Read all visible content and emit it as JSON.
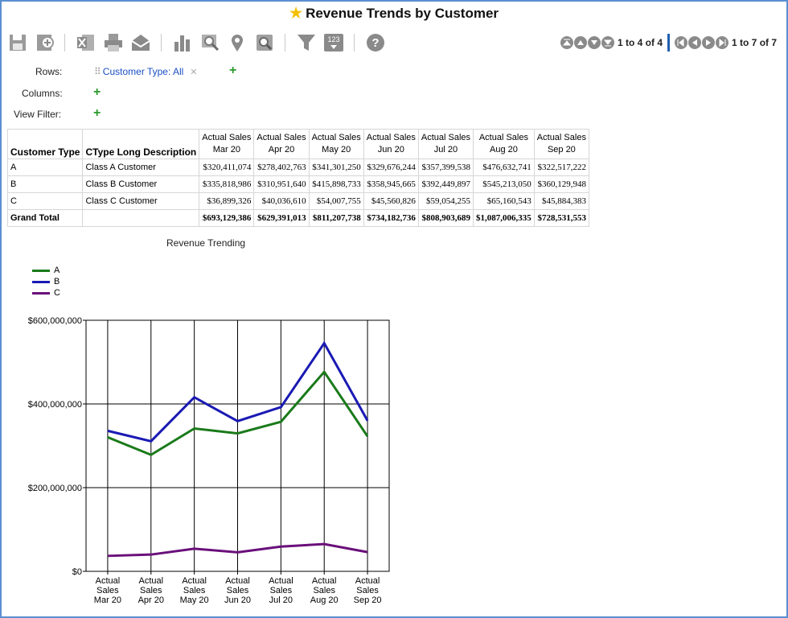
{
  "title": "Revenue Trends by Customer",
  "toolbar": {
    "icons": [
      "save-icon",
      "add-icon",
      "excel-icon",
      "print-icon",
      "email-icon",
      "bar-chart-icon",
      "search-icon",
      "map-pin-icon",
      "magnifier-icon",
      "filter-icon",
      "number-format-icon",
      "help-icon"
    ]
  },
  "pager": {
    "rows_text": "1 to 4 of 4",
    "cols_text": "1 to 7 of 7"
  },
  "pivot": {
    "rows_label": "Rows:",
    "rows_chip": "Customer Type: All",
    "columns_label": "Columns:",
    "view_filter_label": "View Filter:"
  },
  "table": {
    "col1": "Customer Type",
    "col2": "CType Long Description",
    "month_headers": [
      {
        "top": "Actual Sales",
        "bottom": "Mar 20"
      },
      {
        "top": "Actual Sales",
        "bottom": "Apr 20"
      },
      {
        "top": "Actual Sales",
        "bottom": "May 20"
      },
      {
        "top": "Actual Sales",
        "bottom": "Jun 20"
      },
      {
        "top": "Actual Sales",
        "bottom": "Jul 20"
      },
      {
        "top": "Actual Sales",
        "bottom": "Aug 20"
      },
      {
        "top": "Actual Sales",
        "bottom": "Sep 20"
      }
    ],
    "rows": [
      {
        "type": "A",
        "desc": "Class A Customer",
        "values": [
          "$320,411,074",
          "$278,402,763",
          "$341,301,250",
          "$329,676,244",
          "$357,399,538",
          "$476,632,741",
          "$322,517,222"
        ]
      },
      {
        "type": "B",
        "desc": "Class B Customer",
        "values": [
          "$335,818,986",
          "$310,951,640",
          "$415,898,733",
          "$358,945,665",
          "$392,449,897",
          "$545,213,050",
          "$360,129,948"
        ]
      },
      {
        "type": "C",
        "desc": "Class C Customer",
        "values": [
          "$36,899,326",
          "$40,036,610",
          "$54,007,755",
          "$45,560,826",
          "$59,054,255",
          "$65,160,543",
          "$45,884,383"
        ]
      }
    ],
    "total": {
      "label": "Grand Total",
      "desc": "",
      "values": [
        "$693,129,386",
        "$629,391,013",
        "$811,207,738",
        "$734,182,736",
        "$808,903,689",
        "$1,087,006,335",
        "$728,531,553"
      ]
    }
  },
  "chart_data": {
    "type": "line",
    "title": "Revenue Trending",
    "categories": [
      "Actual Sales Mar 20",
      "Actual Sales Apr 20",
      "Actual Sales May 20",
      "Actual Sales Jun 20",
      "Actual Sales Jul 20",
      "Actual Sales Aug 20",
      "Actual Sales Sep 20"
    ],
    "category_lines": [
      [
        "Actual",
        "Sales",
        "Mar 20"
      ],
      [
        "Actual",
        "Sales",
        "Apr 20"
      ],
      [
        "Actual",
        "Sales",
        "May 20"
      ],
      [
        "Actual",
        "Sales",
        "Jun 20"
      ],
      [
        "Actual",
        "Sales",
        "Jul 20"
      ],
      [
        "Actual",
        "Sales",
        "Aug 20"
      ],
      [
        "Actual",
        "Sales",
        "Sep 20"
      ]
    ],
    "series": [
      {
        "name": "A",
        "color": "#1a7a1a",
        "values": [
          320411074,
          278402763,
          341301250,
          329676244,
          357399538,
          476632741,
          322517222
        ]
      },
      {
        "name": "B",
        "color": "#1a1ab4",
        "values": [
          335818986,
          310951640,
          415898733,
          358945665,
          392449897,
          545213050,
          360129948
        ]
      },
      {
        "name": "C",
        "color": "#6a0f7a",
        "values": [
          36899326,
          40036610,
          54007755,
          45560826,
          59054255,
          65160543,
          45884383
        ]
      }
    ],
    "ylim": [
      0,
      600000000
    ],
    "yticks": [
      0,
      200000000,
      400000000,
      600000000
    ],
    "ytick_labels": [
      "$0",
      "$200,000,000",
      "$400,000,000",
      "$600,000,000"
    ],
    "grid": true,
    "legend": "top-left"
  }
}
